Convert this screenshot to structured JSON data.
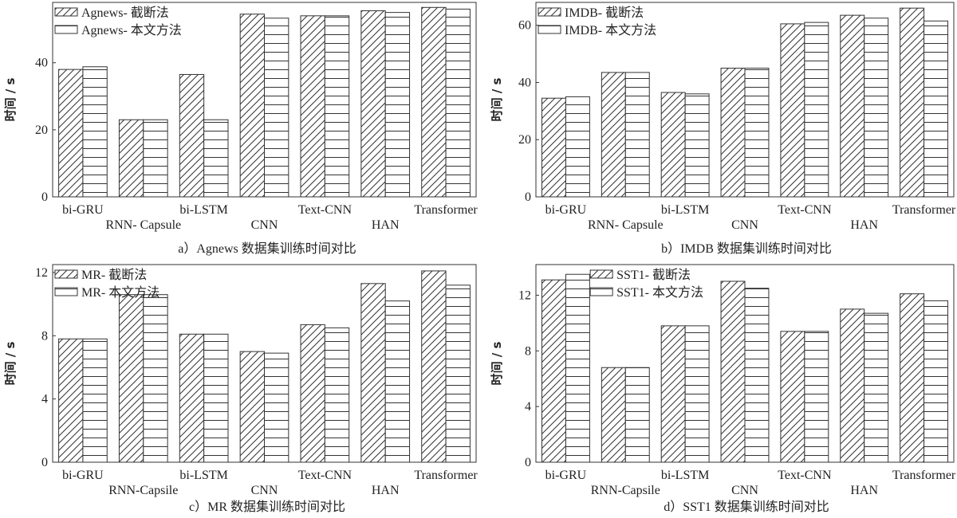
{
  "chart_data": [
    {
      "type": "bar",
      "caption": "a）Agnews 数据集训练时间对比",
      "ylabel": "时间 / s",
      "ylim": [
        0,
        58
      ],
      "yticks": [
        0,
        20,
        40
      ],
      "categories": [
        "bi-GRU",
        "RNN- Capsule",
        "bi-LSTM",
        "CNN",
        "Text-CNN",
        "HAN",
        "Transformer"
      ],
      "series": [
        {
          "name": "Agnews- 截断法",
          "values": [
            38,
            23,
            36.5,
            54.5,
            54,
            55.5,
            56.5
          ]
        },
        {
          "name": "Agnews- 本文方法",
          "values": [
            38.8,
            23,
            23,
            53.3,
            54,
            55,
            56
          ]
        }
      ],
      "legend": "top-left"
    },
    {
      "type": "bar",
      "caption": "b）IMDB 数据集训练时间对比",
      "ylabel": "时间 / s",
      "ylim": [
        0,
        68
      ],
      "yticks": [
        0,
        20,
        40,
        60
      ],
      "categories": [
        "bi-GRU",
        "RNN- Capsule",
        "bi-LSTM",
        "CNN",
        "Text-CNN",
        "HAN",
        "Transformer"
      ],
      "series": [
        {
          "name": "IMDB- 截断法",
          "values": [
            34.5,
            43.5,
            36.5,
            45,
            60.5,
            63.5,
            66
          ]
        },
        {
          "name": "IMDB- 本文方法",
          "values": [
            35,
            43.5,
            36,
            45,
            61,
            62.5,
            61.5
          ]
        }
      ],
      "legend": "top-left"
    },
    {
      "type": "bar",
      "caption": "c）MR 数据集训练时间对比",
      "ylabel": "时间 / s",
      "ylim": [
        0,
        12.5
      ],
      "yticks": [
        0,
        4,
        8,
        12
      ],
      "categories": [
        "bi-GRU",
        "RNN-Capsile",
        "bi-LSTM",
        "CNN",
        "Text-CNN",
        "HAN",
        "Transformer"
      ],
      "series": [
        {
          "name": "MR- 截断法",
          "values": [
            7.8,
            10.6,
            8.1,
            7,
            8.7,
            11.3,
            12.1
          ]
        },
        {
          "name": "MR- 本文方法",
          "values": [
            7.8,
            10.6,
            8.1,
            6.9,
            8.5,
            10.2,
            11.2
          ]
        }
      ],
      "legend": "top-left"
    },
    {
      "type": "bar",
      "caption": "d）SST1 数据集训练时间对比",
      "ylabel": "时间 / s",
      "ylim": [
        0,
        14.2
      ],
      "yticks": [
        0,
        4,
        8,
        12
      ],
      "categories": [
        "bi-GRU",
        "RNN-Capsile",
        "bi-LSTM",
        "CNN",
        "Text-CNN",
        "HAN",
        "Transformer"
      ],
      "series": [
        {
          "name": "SST1- 截断法",
          "values": [
            13.1,
            6.8,
            9.8,
            13,
            9.4,
            11,
            12.1
          ]
        },
        {
          "name": "SST1- 本文方法",
          "values": [
            13.5,
            6.8,
            9.8,
            12.5,
            9.4,
            10.7,
            11.6
          ]
        }
      ],
      "legend": "top-center"
    }
  ]
}
